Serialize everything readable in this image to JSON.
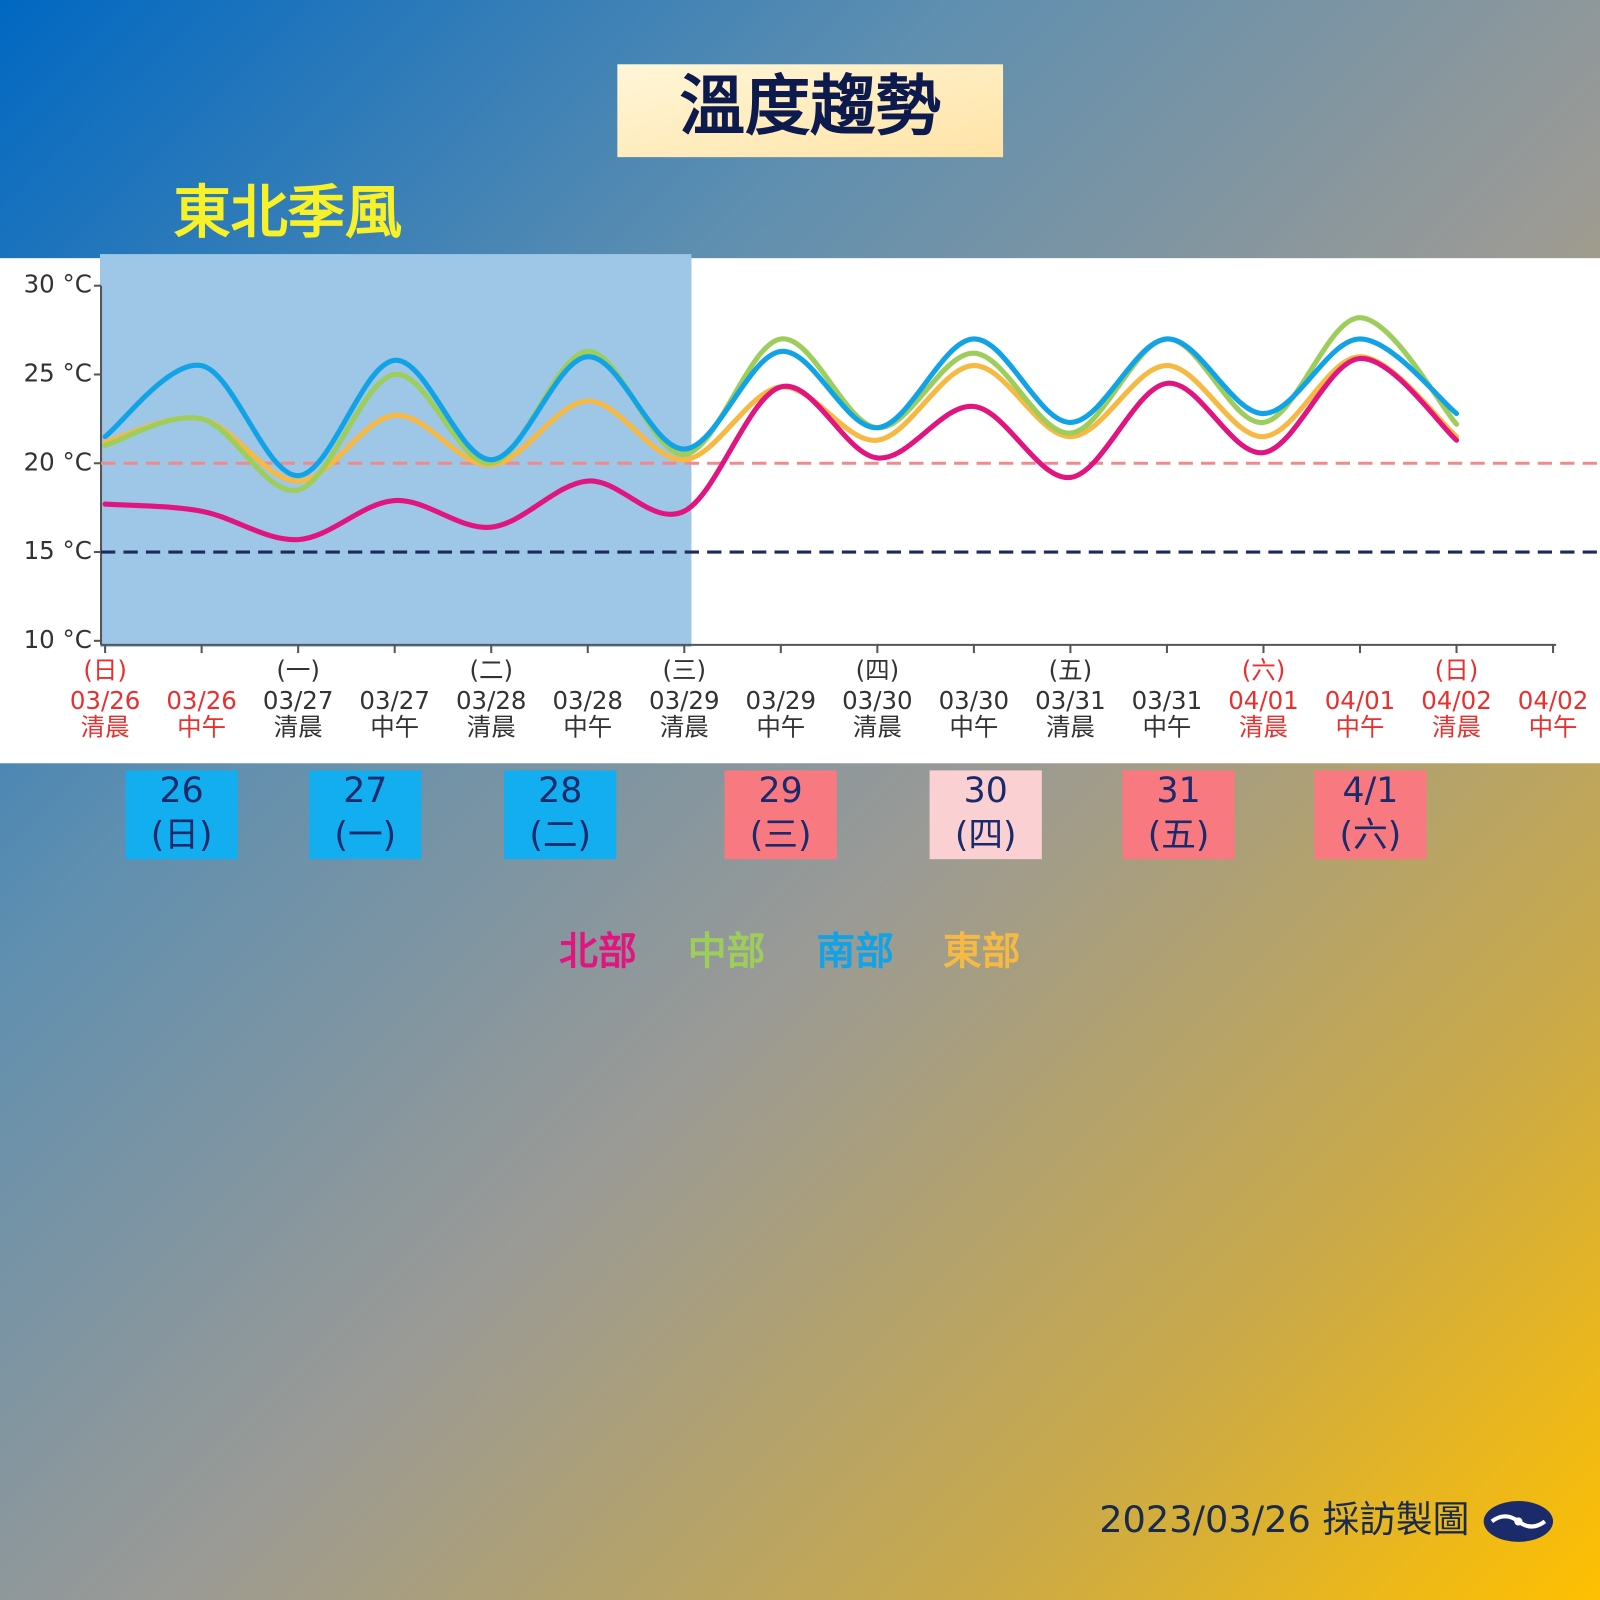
{
  "chart_data": {
    "type": "line",
    "title": "溫度趨勢",
    "ylim": [
      10,
      30
    ],
    "yticks": [
      {
        "value": 10,
        "label": "10 °C"
      },
      {
        "value": 15,
        "label": "15 °C"
      },
      {
        "value": 20,
        "label": "20 °C"
      },
      {
        "value": 25,
        "label": "25 °C"
      },
      {
        "value": 30,
        "label": "30 °C"
      }
    ],
    "categories": [
      {
        "weekday": "(日)",
        "date": "03/26",
        "time": "清晨",
        "color": "#e8302f"
      },
      {
        "weekday": null,
        "date": "03/26",
        "time": "中午",
        "color": "#e8302f"
      },
      {
        "weekday": "(一)",
        "date": "03/27",
        "time": "清晨",
        "color": "#333333"
      },
      {
        "weekday": null,
        "date": "03/27",
        "time": "中午",
        "color": "#333333"
      },
      {
        "weekday": "(二)",
        "date": "03/28",
        "time": "清晨",
        "color": "#333333"
      },
      {
        "weekday": null,
        "date": "03/28",
        "time": "中午",
        "color": "#333333"
      },
      {
        "weekday": "(三)",
        "date": "03/29",
        "time": "清晨",
        "color": "#333333"
      },
      {
        "weekday": null,
        "date": "03/29",
        "time": "中午",
        "color": "#333333"
      },
      {
        "weekday": "(四)",
        "date": "03/30",
        "time": "清晨",
        "color": "#333333"
      },
      {
        "weekday": null,
        "date": "03/30",
        "time": "中午",
        "color": "#333333"
      },
      {
        "weekday": "(五)",
        "date": "03/31",
        "time": "清晨",
        "color": "#333333"
      },
      {
        "weekday": null,
        "date": "03/31",
        "time": "中午",
        "color": "#333333"
      },
      {
        "weekday": "(六)",
        "date": "04/01",
        "time": "清晨",
        "color": "#e8302f"
      },
      {
        "weekday": null,
        "date": "04/01",
        "time": "中午",
        "color": "#e8302f"
      },
      {
        "weekday": "(日)",
        "date": "04/02",
        "time": "清晨",
        "color": "#e8302f"
      },
      {
        "weekday": null,
        "date": "04/02",
        "time": "中午",
        "color": "#e8302f"
      }
    ],
    "series": [
      {
        "name": "北部",
        "color": "#e0157f",
        "values": [
          17.7,
          17.3,
          15.7,
          17.9,
          16.4,
          19.0,
          17.3,
          24.3,
          20.3,
          23.2,
          19.2,
          24.5,
          20.6,
          25.9,
          21.3,
          null
        ]
      },
      {
        "name": "中部",
        "color": "#9dcd5a",
        "values": [
          21.0,
          22.5,
          18.5,
          25.0,
          20.0,
          26.3,
          20.5,
          27.0,
          22.0,
          26.2,
          21.7,
          27.0,
          22.3,
          28.2,
          22.2,
          null
        ]
      },
      {
        "name": "南部",
        "color": "#12a3e6",
        "values": [
          21.5,
          25.5,
          19.3,
          25.8,
          20.2,
          26.0,
          20.8,
          26.3,
          22.0,
          27.0,
          22.3,
          27.0,
          22.8,
          27.0,
          22.8,
          null
        ]
      },
      {
        "name": "東部",
        "color": "#f5b944",
        "values": [
          21.2,
          22.5,
          19.0,
          22.7,
          19.9,
          23.5,
          20.2,
          24.3,
          21.3,
          25.5,
          21.5,
          25.5,
          21.5,
          26.0,
          21.5,
          null
        ]
      }
    ],
    "reference_lines": [
      {
        "value": 20,
        "color": "#f08a8c"
      },
      {
        "value": 15,
        "color": "#1c2a5c"
      }
    ],
    "shaded_region": {
      "label": "東北季風",
      "from_index": 0,
      "to_index": 6,
      "color": "#9ec6e6"
    },
    "day_boxes": [
      {
        "day": "26",
        "weekday": "(日)",
        "color": "#12aef0"
      },
      {
        "day": "27",
        "weekday": "(一)",
        "color": "#12aef0"
      },
      {
        "day": "28",
        "weekday": "(二)",
        "color": "#12aef0"
      },
      {
        "day": "29",
        "weekday": "(三)",
        "color": "#f87a80"
      },
      {
        "day": "30",
        "weekday": "(四)",
        "color": "#fbd0d3"
      },
      {
        "day": "31",
        "weekday": "(五)",
        "color": "#f87a80"
      },
      {
        "day": "4/1",
        "weekday": "(六)",
        "color": "#f87a80"
      }
    ],
    "footer": "2023/03/26 採訪製圖"
  }
}
